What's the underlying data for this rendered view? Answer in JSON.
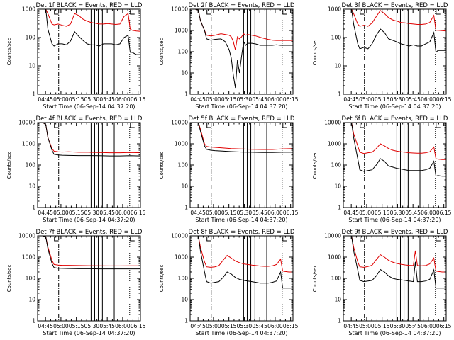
{
  "figure": {
    "start_time_label": "Start Time (06-Sep-14 04:37:20)",
    "ylabel": "Counts/sec",
    "xtick_labels": [
      "04:45",
      "05:00",
      "05:15",
      "05:30",
      "05:45",
      "06:00",
      "06:15"
    ],
    "ytick_labels": [
      "1",
      "10",
      "100",
      "1000",
      "10000"
    ],
    "colors": {
      "events": "#000000",
      "lld": "#e00000",
      "axes": "#000000",
      "background": "#ffffff"
    }
  },
  "chart_data": [
    {
      "type": "line",
      "title": "Det 1f BLACK = Events, RED = LLD",
      "xlabel": "Start Time (06-Sep-14 04:37:20)",
      "ylabel": "Counts/sec",
      "x_unit": "minutes after 04:37:20",
      "yscale": "log",
      "xlim": [
        0,
        100
      ],
      "ylim": [
        1,
        1000
      ],
      "events": {
        "x": [
          0,
          5,
          8,
          10,
          14,
          16,
          20,
          24,
          28,
          32,
          36,
          40,
          44,
          48,
          52,
          56,
          60,
          64,
          68,
          72,
          76,
          80,
          84,
          88,
          90,
          92,
          96,
          100
        ],
        "y": [
          1000,
          1000,
          1000,
          200,
          60,
          50,
          60,
          60,
          55,
          75,
          160,
          110,
          80,
          60,
          55,
          55,
          50,
          60,
          60,
          60,
          55,
          60,
          100,
          120,
          30,
          30,
          25,
          25
        ]
      },
      "lld": {
        "x": [
          0,
          5,
          8,
          10,
          14,
          16,
          20,
          24,
          28,
          32,
          36,
          40,
          44,
          48,
          52,
          56,
          60,
          64,
          68,
          72,
          76,
          80,
          84,
          88,
          90,
          92,
          96,
          100
        ],
        "y": [
          1000,
          1000,
          1000,
          700,
          300,
          280,
          300,
          270,
          250,
          300,
          700,
          600,
          450,
          380,
          340,
          320,
          300,
          300,
          310,
          300,
          290,
          300,
          550,
          700,
          200,
          180,
          170,
          165
        ]
      }
    },
    {
      "type": "line",
      "title": "Det 2f BLACK = Events, RED = LLD",
      "xlabel": "Start Time (06-Sep-14 04:37:20)",
      "ylabel": "Counts/sec",
      "x_unit": "minutes after 04:37:20",
      "yscale": "log",
      "xlim": [
        0,
        100
      ],
      "ylim": [
        1,
        10000
      ],
      "events": {
        "x": [
          0,
          5,
          8,
          10,
          14,
          16,
          20,
          24,
          30,
          34,
          38,
          40,
          42,
          44,
          46,
          48,
          50,
          52,
          54,
          56,
          60,
          64,
          68,
          72,
          76,
          80,
          84,
          88,
          92,
          96,
          100
        ],
        "y": [
          10000,
          10000,
          9000,
          3000,
          1000,
          400,
          350,
          380,
          400,
          300,
          120,
          50,
          8,
          2,
          40,
          10,
          60,
          300,
          200,
          250,
          250,
          230,
          200,
          200,
          200,
          200,
          210,
          200,
          200,
          200,
          200
        ]
      },
      "lld": {
        "x": [
          0,
          5,
          8,
          10,
          14,
          16,
          20,
          24,
          30,
          34,
          38,
          40,
          42,
          44,
          46,
          48,
          50,
          52,
          54,
          56,
          60,
          64,
          68,
          72,
          76,
          80,
          84,
          88,
          92,
          96,
          100
        ],
        "y": [
          10000,
          10000,
          9000,
          3000,
          1000,
          600,
          550,
          600,
          700,
          650,
          600,
          500,
          300,
          120,
          500,
          400,
          500,
          700,
          600,
          650,
          600,
          550,
          480,
          420,
          380,
          350,
          340,
          340,
          340,
          340,
          340
        ]
      }
    },
    {
      "type": "line",
      "title": "Det 3f BLACK = Events, RED = LLD",
      "xlabel": "Start Time (06-Sep-14 04:37:20)",
      "ylabel": "Counts/sec",
      "x_unit": "minutes after 04:37:20",
      "yscale": "log",
      "xlim": [
        0,
        100
      ],
      "ylim": [
        1,
        1000
      ],
      "events": {
        "x": [
          0,
          5,
          8,
          10,
          14,
          16,
          20,
          24,
          28,
          32,
          36,
          40,
          44,
          48,
          52,
          56,
          60,
          64,
          68,
          72,
          76,
          80,
          84,
          88,
          90,
          92,
          96,
          100
        ],
        "y": [
          1000,
          1000,
          1000,
          300,
          60,
          40,
          45,
          40,
          60,
          120,
          200,
          150,
          90,
          80,
          70,
          60,
          55,
          50,
          55,
          50,
          50,
          60,
          70,
          150,
          30,
          35,
          35,
          35
        ]
      },
      "lld": {
        "x": [
          0,
          5,
          8,
          10,
          14,
          16,
          20,
          24,
          28,
          32,
          36,
          40,
          44,
          48,
          52,
          56,
          60,
          64,
          68,
          72,
          76,
          80,
          84,
          88,
          90,
          92,
          96,
          100
        ],
        "y": [
          1000,
          1000,
          1000,
          700,
          300,
          250,
          270,
          250,
          330,
          550,
          900,
          700,
          500,
          420,
          380,
          340,
          330,
          310,
          300,
          290,
          290,
          300,
          340,
          600,
          180,
          180,
          175,
          170
        ]
      }
    },
    {
      "type": "line",
      "title": "Det 4f BLACK = Events, RED = LLD",
      "xlabel": "Start Time (06-Sep-14 04:37:20)",
      "ylabel": "Counts/sec",
      "x_unit": "minutes after 04:37:20",
      "yscale": "log",
      "xlim": [
        0,
        100
      ],
      "ylim": [
        1,
        10000
      ],
      "events": {
        "x": [
          0,
          5,
          8,
          10,
          14,
          16,
          20,
          24,
          30,
          40,
          50,
          60,
          70,
          80,
          90,
          100
        ],
        "y": [
          10000,
          10000,
          8000,
          2000,
          500,
          320,
          300,
          290,
          285,
          280,
          280,
          275,
          270,
          270,
          275,
          270
        ]
      },
      "lld": {
        "x": [
          0,
          5,
          8,
          10,
          14,
          16,
          20,
          24,
          30,
          40,
          50,
          60,
          70,
          80,
          90,
          100
        ],
        "y": [
          10000,
          10000,
          8000,
          2000,
          600,
          450,
          420,
          410,
          420,
          400,
          400,
          390,
          380,
          380,
          390,
          380
        ]
      }
    },
    {
      "type": "line",
      "title": "Det 5f BLACK = Events, RED = LLD",
      "xlabel": "Start Time (06-Sep-14 04:37:20)",
      "ylabel": "Counts/sec",
      "x_unit": "minutes after 04:37:20",
      "yscale": "log",
      "xlim": [
        0,
        100
      ],
      "ylim": [
        1,
        10000
      ],
      "events": {
        "x": [
          0,
          5,
          8,
          10,
          14,
          16,
          20,
          24,
          30,
          40,
          50,
          60,
          70,
          80,
          90,
          100
        ],
        "y": [
          10000,
          10000,
          10000,
          4000,
          800,
          550,
          500,
          480,
          460,
          430,
          410,
          400,
          390,
          390,
          400,
          400
        ]
      },
      "lld": {
        "x": [
          0,
          5,
          8,
          10,
          14,
          16,
          20,
          24,
          30,
          40,
          50,
          60,
          70,
          80,
          90,
          100
        ],
        "y": [
          10000,
          10000,
          10000,
          5000,
          1000,
          750,
          700,
          680,
          650,
          600,
          570,
          550,
          540,
          540,
          580,
          600
        ]
      }
    },
    {
      "type": "line",
      "title": "Det 6f BLACK = Events, RED = LLD",
      "xlabel": "Start Time (06-Sep-14 04:37:20)",
      "ylabel": "Counts/sec",
      "x_unit": "minutes after 04:37:20",
      "yscale": "log",
      "xlim": [
        0,
        100
      ],
      "ylim": [
        1,
        10000
      ],
      "events": {
        "x": [
          0,
          5,
          8,
          10,
          14,
          16,
          20,
          24,
          28,
          32,
          36,
          40,
          44,
          48,
          52,
          56,
          60,
          64,
          68,
          72,
          76,
          80,
          84,
          88,
          90,
          92,
          96,
          100
        ],
        "y": [
          10000,
          10000,
          10000,
          2000,
          200,
          60,
          50,
          55,
          60,
          100,
          200,
          150,
          90,
          80,
          70,
          65,
          60,
          55,
          55,
          55,
          55,
          60,
          70,
          150,
          30,
          32,
          30,
          30
        ]
      },
      "lld": {
        "x": [
          0,
          5,
          8,
          10,
          14,
          16,
          20,
          24,
          28,
          32,
          36,
          40,
          44,
          48,
          52,
          56,
          60,
          64,
          68,
          72,
          76,
          80,
          84,
          88,
          90,
          92,
          96,
          100
        ],
        "y": [
          10000,
          10000,
          10000,
          3000,
          800,
          400,
          350,
          380,
          400,
          600,
          1000,
          800,
          600,
          500,
          450,
          420,
          400,
          380,
          370,
          360,
          360,
          380,
          420,
          700,
          200,
          190,
          180,
          180
        ]
      }
    },
    {
      "type": "line",
      "title": "Det 7f BLACK = Events, RED = LLD",
      "xlabel": "Start Time (06-Sep-14 04:37:20)",
      "ylabel": "Counts/sec",
      "x_unit": "minutes after 04:37:20",
      "yscale": "log",
      "xlim": [
        0,
        100
      ],
      "ylim": [
        1,
        10000
      ],
      "events": {
        "x": [
          0,
          5,
          8,
          10,
          14,
          16,
          20,
          24,
          30,
          40,
          50,
          60,
          70,
          80,
          90,
          100
        ],
        "y": [
          10000,
          10000,
          9000,
          2500,
          500,
          320,
          300,
          295,
          290,
          285,
          285,
          280,
          280,
          280,
          280,
          280
        ]
      },
      "lld": {
        "x": [
          0,
          5,
          8,
          10,
          14,
          16,
          20,
          24,
          30,
          40,
          50,
          60,
          70,
          80,
          90,
          100
        ],
        "y": [
          10000,
          10000,
          9000,
          3000,
          700,
          450,
          420,
          410,
          410,
          400,
          395,
          390,
          385,
          385,
          390,
          390
        ]
      }
    },
    {
      "type": "line",
      "title": "Det 8f BLACK = Events, RED = LLD",
      "xlabel": "Start Time (06-Sep-14 04:37:20)",
      "ylabel": "Counts/sec",
      "x_unit": "minutes after 04:37:20",
      "yscale": "log",
      "xlim": [
        0,
        100
      ],
      "ylim": [
        1,
        10000
      ],
      "events": {
        "x": [
          0,
          5,
          8,
          10,
          14,
          16,
          20,
          24,
          28,
          32,
          36,
          40,
          44,
          48,
          52,
          56,
          60,
          64,
          68,
          72,
          76,
          80,
          84,
          88,
          90,
          92,
          96,
          100
        ],
        "y": [
          10000,
          10000,
          10000,
          2000,
          200,
          70,
          60,
          65,
          70,
          110,
          200,
          160,
          110,
          90,
          80,
          75,
          70,
          65,
          60,
          60,
          60,
          65,
          75,
          200,
          35,
          35,
          35,
          35
        ]
      },
      "lld": {
        "x": [
          0,
          5,
          8,
          10,
          14,
          16,
          20,
          24,
          28,
          32,
          36,
          40,
          44,
          48,
          52,
          56,
          60,
          64,
          68,
          72,
          76,
          80,
          84,
          88,
          90,
          92,
          96,
          100
        ],
        "y": [
          10000,
          10000,
          10000,
          3000,
          600,
          350,
          330,
          350,
          400,
          700,
          1200,
          900,
          650,
          550,
          480,
          450,
          420,
          400,
          380,
          370,
          370,
          390,
          450,
          800,
          220,
          210,
          200,
          200
        ]
      }
    },
    {
      "type": "line",
      "title": "Det 9f BLACK = Events, RED = LLD",
      "xlabel": "Start Time (06-Sep-14 04:37:20)",
      "ylabel": "Counts/sec",
      "x_unit": "minutes after 04:37:20",
      "yscale": "log",
      "xlim": [
        0,
        100
      ],
      "ylim": [
        1,
        10000
      ],
      "events": {
        "x": [
          0,
          5,
          8,
          10,
          14,
          16,
          20,
          24,
          28,
          32,
          36,
          40,
          44,
          48,
          52,
          56,
          60,
          64,
          68,
          70,
          72,
          76,
          80,
          84,
          88,
          90,
          92,
          96,
          100
        ],
        "y": [
          10000,
          10000,
          10000,
          2000,
          250,
          80,
          70,
          75,
          80,
          130,
          260,
          200,
          130,
          100,
          90,
          85,
          80,
          75,
          70,
          600,
          70,
          70,
          75,
          90,
          250,
          35,
          35,
          35,
          35
        ]
      },
      "lld": {
        "x": [
          0,
          5,
          8,
          10,
          14,
          16,
          20,
          24,
          28,
          32,
          36,
          40,
          44,
          48,
          52,
          56,
          60,
          64,
          68,
          70,
          72,
          76,
          80,
          84,
          88,
          90,
          92,
          96,
          100
        ],
        "y": [
          10000,
          10000,
          10000,
          3000,
          600,
          350,
          330,
          360,
          420,
          750,
          1300,
          1000,
          700,
          580,
          500,
          460,
          430,
          410,
          400,
          2000,
          400,
          390,
          400,
          480,
          900,
          220,
          210,
          200,
          200
        ]
      }
    }
  ]
}
